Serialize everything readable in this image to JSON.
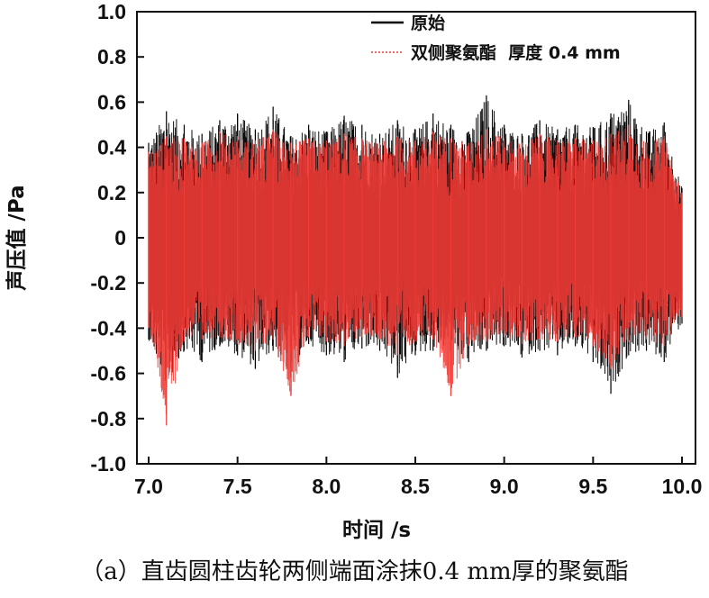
{
  "chart_data": {
    "type": "line",
    "xlabel": "时间 /s",
    "ylabel": "声压值 /Pa",
    "xlim": [
      7.0,
      10.0
    ],
    "ylim": [
      -1.0,
      1.0
    ],
    "x_ticks": [
      "7.0",
      "7.5",
      "8.0",
      "8.5",
      "9.0",
      "9.5",
      "10.0"
    ],
    "y_ticks": [
      "1.0",
      "0.8",
      "0.6",
      "0.4",
      "0.2",
      "0",
      "-0.2",
      "-0.4",
      "-0.6",
      "-0.8",
      "-1.0"
    ],
    "grid": false,
    "legend_position": "top-right",
    "series": [
      {
        "name": "原始",
        "color": "#000000",
        "style": "solid",
        "x": [
          7.0,
          7.1,
          7.2,
          7.3,
          7.4,
          7.5,
          7.6,
          7.7,
          7.8,
          7.9,
          8.0,
          8.1,
          8.2,
          8.3,
          8.4,
          8.5,
          8.6,
          8.7,
          8.8,
          8.9,
          9.0,
          9.1,
          9.2,
          9.3,
          9.4,
          9.5,
          9.6,
          9.7,
          9.8,
          9.9,
          10.0
        ],
        "y_max": [
          0.42,
          0.56,
          0.5,
          0.46,
          0.52,
          0.55,
          0.48,
          0.58,
          0.45,
          0.5,
          0.47,
          0.54,
          0.5,
          0.46,
          0.52,
          0.48,
          0.55,
          0.5,
          0.47,
          0.63,
          0.5,
          0.46,
          0.52,
          0.48,
          0.5,
          0.49,
          0.55,
          0.61,
          0.47,
          0.51,
          0.22
        ],
        "y_min": [
          -0.45,
          -0.66,
          -0.5,
          -0.55,
          -0.48,
          -0.52,
          -0.58,
          -0.5,
          -0.62,
          -0.47,
          -0.52,
          -0.55,
          -0.49,
          -0.5,
          -0.62,
          -0.52,
          -0.5,
          -0.48,
          -0.55,
          -0.5,
          -0.48,
          -0.53,
          -0.5,
          -0.52,
          -0.48,
          -0.55,
          -0.69,
          -0.52,
          -0.5,
          -0.55,
          -0.38
        ]
      },
      {
        "name": "双侧聚氨酯  厚度 0.4 mm",
        "color": "#ef3a35",
        "style": "dotted",
        "x": [
          7.0,
          7.1,
          7.2,
          7.3,
          7.4,
          7.5,
          7.6,
          7.7,
          7.8,
          7.9,
          8.0,
          8.1,
          8.2,
          8.3,
          8.4,
          8.5,
          8.6,
          8.7,
          8.8,
          8.9,
          9.0,
          9.1,
          9.2,
          9.3,
          9.4,
          9.5,
          9.6,
          9.7,
          9.8,
          9.9,
          10.0
        ],
        "y_max": [
          0.38,
          0.45,
          0.44,
          0.42,
          0.47,
          0.45,
          0.43,
          0.48,
          0.42,
          0.44,
          0.43,
          0.46,
          0.44,
          0.42,
          0.45,
          0.43,
          0.47,
          0.44,
          0.42,
          0.48,
          0.44,
          0.42,
          0.46,
          0.43,
          0.44,
          0.43,
          0.46,
          0.5,
          0.42,
          0.45,
          0.2
        ],
        "y_min": [
          -0.4,
          -0.83,
          -0.46,
          -0.45,
          -0.44,
          -0.47,
          -0.5,
          -0.45,
          -0.7,
          -0.44,
          -0.46,
          -0.48,
          -0.44,
          -0.45,
          -0.52,
          -0.46,
          -0.45,
          -0.7,
          -0.48,
          -0.46,
          -0.44,
          -0.47,
          -0.45,
          -0.46,
          -0.44,
          -0.48,
          -0.58,
          -0.46,
          -0.45,
          -0.48,
          -0.35
        ]
      }
    ]
  },
  "caption": "（a）直齿圆柱齿轮两侧端面涂抹0.4 mm厚的聚氨酯"
}
